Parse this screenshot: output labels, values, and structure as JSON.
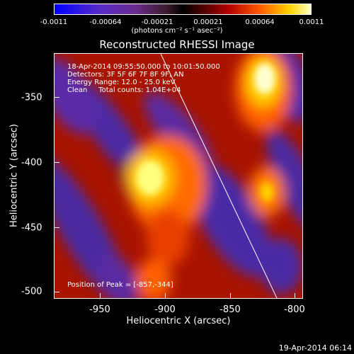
{
  "colorbar": {
    "ticks": [
      "-0.0011",
      "-0.00064",
      "-0.00021",
      "0.00021",
      "0.00064",
      "0.0011"
    ],
    "unit": "(photons cm⁻² s⁻¹ asec⁻²)"
  },
  "title": "Reconstructed RHESSI Image",
  "info": {
    "line1": "18-Apr-2014 09:55:50.000 to 10:01:50.000",
    "line2": "Detectors: 3F 5F 6F 7F 8F 9F, AN",
    "line3": "Energy Range: 12.0 - 25.0 keV",
    "line4": "Clean     Total counts: 1.04E+04"
  },
  "peak": "Position of Peak = [-857,-344]",
  "axes": {
    "xlabel": "Heliocentric X (arcsec)",
    "ylabel": "Heliocentric Y (arcsec)",
    "xticks": [
      "-950",
      "-900",
      "-850",
      "-800"
    ],
    "yticks": [
      "-350",
      "-400",
      "-450",
      "-500"
    ]
  },
  "timestamp": "19-Apr-2014 06:14"
}
